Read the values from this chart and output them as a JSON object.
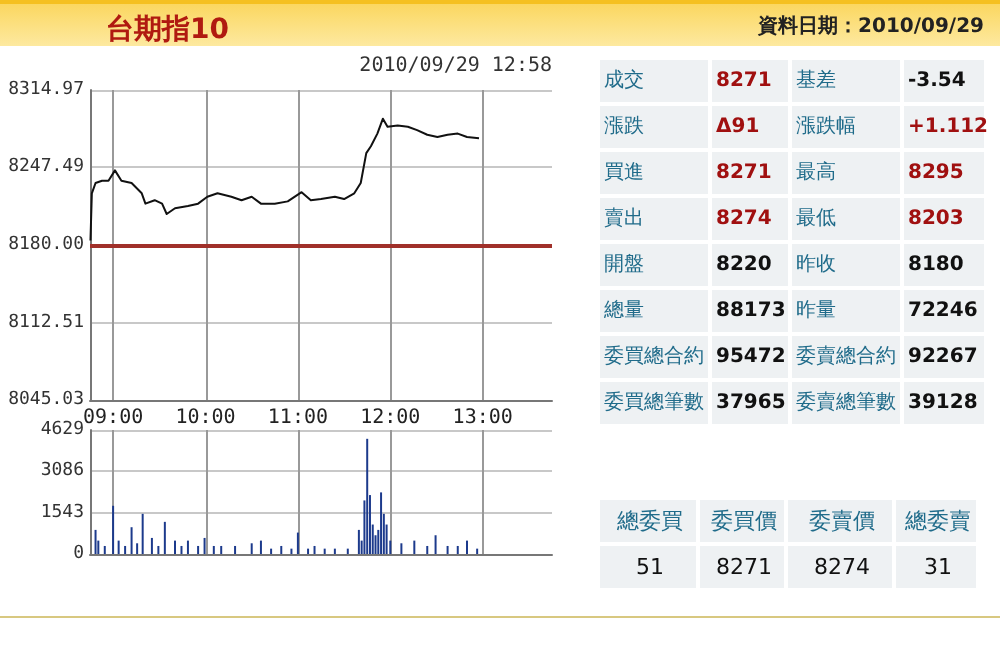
{
  "chart_data": [
    {
      "type": "line",
      "title": "台期指10",
      "annotations": [
        "2010/09/29 12:58"
      ],
      "color": "#111111",
      "marker": "none",
      "grid": true,
      "x": [
        8.755,
        8.77,
        8.81,
        8.88,
        8.95,
        9.02,
        9.09,
        9.2,
        9.31,
        9.35,
        9.45,
        9.53,
        9.58,
        9.67,
        9.81,
        9.92,
        10.02,
        10.13,
        10.28,
        10.39,
        10.5,
        10.6,
        10.75,
        10.89,
        11.04,
        11.14,
        11.25,
        11.4,
        11.5,
        11.61,
        11.68,
        11.74,
        11.79,
        11.86,
        11.92,
        11.97,
        12.08,
        12.19,
        12.29,
        12.4,
        12.51,
        12.62,
        12.73,
        12.83,
        12.96
      ],
      "values": [
        8184,
        8225,
        8234,
        8236,
        8236,
        8245,
        8236,
        8234,
        8225,
        8216,
        8219,
        8216,
        8207,
        8212,
        8214,
        8216,
        8222,
        8225,
        8222,
        8219,
        8222,
        8216,
        8216,
        8218,
        8226,
        8219,
        8220,
        8222,
        8220,
        8225,
        8234,
        8260,
        8266,
        8277,
        8290,
        8283,
        8284,
        8283,
        8280,
        8276,
        8274,
        8276,
        8277,
        8274,
        8273
      ],
      "xlim": [
        8.75,
        13.75
      ],
      "xticks": [
        {
          "value": 9,
          "label": "09:00"
        },
        {
          "value": 10,
          "label": "10:00"
        },
        {
          "value": 11,
          "label": "11:00"
        },
        {
          "value": 12,
          "label": "12:00"
        },
        {
          "value": 13,
          "label": "13:00"
        }
      ],
      "ylim": [
        8045.03,
        8314.97
      ],
      "yticks": [
        {
          "value": 8045.03,
          "label": "8045.03"
        },
        8112.51,
        {
          "value": 8180,
          "label": "8180.00"
        },
        8247.49,
        8314.97
      ],
      "ref_lines": [
        {
          "axis": "y",
          "value": 8180,
          "color": "#a0302a"
        }
      ]
    },
    {
      "type": "bar",
      "color": "#1c3a8c",
      "grid": true,
      "tick_labels": "y",
      "x": [
        8.81,
        8.84,
        8.91,
        9.0,
        9.06,
        9.13,
        9.2,
        9.26,
        9.32,
        9.42,
        9.49,
        9.56,
        9.67,
        9.74,
        9.81,
        9.92,
        9.99,
        10.09,
        10.17,
        10.32,
        10.5,
        10.6,
        10.71,
        10.82,
        10.93,
        11.0,
        11.11,
        11.18,
        11.29,
        11.4,
        11.54,
        11.66,
        11.69,
        11.72,
        11.75,
        11.78,
        11.81,
        11.84,
        11.87,
        11.9,
        11.93,
        11.96,
        12.0,
        12.12,
        12.26,
        12.4,
        12.49,
        12.62,
        12.73,
        12.83,
        12.94
      ],
      "values": [
        900,
        500,
        300,
        1800,
        500,
        300,
        1000,
        400,
        1500,
        600,
        300,
        1200,
        500,
        300,
        500,
        300,
        600,
        300,
        300,
        300,
        400,
        500,
        200,
        300,
        200,
        800,
        200,
        300,
        200,
        200,
        200,
        900,
        500,
        2000,
        4300,
        2200,
        1100,
        700,
        900,
        2300,
        1500,
        1100,
        500,
        400,
        500,
        300,
        700,
        300,
        300,
        500,
        200
      ],
      "xlim": [
        8.75,
        13.75
      ],
      "xticks": [
        {
          "value": 9,
          "label": null
        },
        {
          "value": 10,
          "label": null
        },
        {
          "value": 11,
          "label": null
        },
        {
          "value": 12,
          "label": null
        },
        {
          "value": 13,
          "label": null
        }
      ],
      "ylim": [
        0,
        4629
      ],
      "yticks": [
        0,
        1543,
        3086,
        4629
      ]
    },
    {
      "type": "other",
      "subtitle": "資料日期：2010/09/29",
      "annotations": [
        "成交",
        "8271",
        "基差",
        "-3.54",
        "漲跌",
        "Δ91",
        "漲跌幅",
        "+1.112",
        "買進",
        "8271",
        "最高",
        "8295",
        "賣出",
        "8274",
        "最低",
        "8203",
        "開盤",
        "8220",
        "昨收",
        "8180",
        "總量",
        "88173",
        "昨量",
        "72246",
        "委買總合約",
        "95472",
        "委賣總合約",
        "92267",
        "委買總筆數",
        "37965",
        "委賣總筆數",
        "39128"
      ],
      "colors": [
        "#1f6b8a",
        "#a01010",
        "#1f6b8a",
        "#111111",
        "#1f6b8a",
        "#a01010",
        "#1f6b8a",
        "#a01010",
        "#1f6b8a",
        "#a01010",
        "#1f6b8a",
        "#a01010",
        "#1f6b8a",
        "#a01010",
        "#1f6b8a",
        "#a01010",
        "#1f6b8a",
        "#111111",
        "#1f6b8a",
        "#111111",
        "#1f6b8a",
        "#111111",
        "#1f6b8a",
        "#111111",
        "#1f6b8a",
        "#111111",
        "#1f6b8a",
        "#111111",
        "#1f6b8a",
        "#111111",
        "#1f6b8a",
        "#111111"
      ]
    },
    {
      "type": "other",
      "annotations": [
        "總委買",
        "委買價",
        "委賣價",
        "總委賣",
        "51",
        "8271",
        "8274",
        "31"
      ],
      "colors": [
        "#1f6b8a",
        "#1f6b8a",
        "#1f6b8a",
        "#1f6b8a",
        "#111111",
        "#111111",
        "#111111",
        "#111111"
      ]
    }
  ]
}
